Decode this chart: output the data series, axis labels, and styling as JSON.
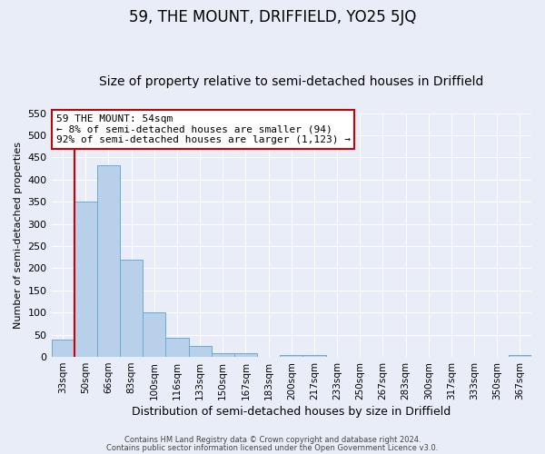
{
  "title": "59, THE MOUNT, DRIFFIELD, YO25 5JQ",
  "subtitle": "Size of property relative to semi-detached houses in Driffield",
  "xlabel": "Distribution of semi-detached houses by size in Driffield",
  "ylabel": "Number of semi-detached properties",
  "bar_labels": [
    "33sqm",
    "50sqm",
    "66sqm",
    "83sqm",
    "100sqm",
    "116sqm",
    "133sqm",
    "150sqm",
    "167sqm",
    "183sqm",
    "200sqm",
    "217sqm",
    "233sqm",
    "250sqm",
    "267sqm",
    "283sqm",
    "300sqm",
    "317sqm",
    "333sqm",
    "350sqm",
    "367sqm"
  ],
  "bar_values": [
    40,
    350,
    432,
    220,
    100,
    44,
    25,
    9,
    8,
    0,
    5,
    4,
    0,
    0,
    0,
    0,
    0,
    0,
    0,
    0,
    5
  ],
  "bar_color": "#b8d0ea",
  "bar_edge_color": "#6aaad4",
  "ylim": [
    0,
    550
  ],
  "yticks": [
    0,
    50,
    100,
    150,
    200,
    250,
    300,
    350,
    400,
    450,
    500,
    550
  ],
  "vline_x_index": 1,
  "vline_color": "#cc0000",
  "annotation_title": "59 THE MOUNT: 54sqm",
  "annotation_line1": "← 8% of semi-detached houses are smaller (94)",
  "annotation_line2": "92% of semi-detached houses are larger (1,123) →",
  "annotation_box_facecolor": "#ffffff",
  "annotation_box_edgecolor": "#cc0000",
  "footer_line1": "Contains HM Land Registry data © Crown copyright and database right 2024.",
  "footer_line2": "Contains public sector information licensed under the Open Government Licence v3.0.",
  "background_color": "#e8edf8",
  "grid_color": "#ffffff",
  "title_fontsize": 12,
  "subtitle_fontsize": 10,
  "xlabel_fontsize": 9,
  "ylabel_fontsize": 8
}
